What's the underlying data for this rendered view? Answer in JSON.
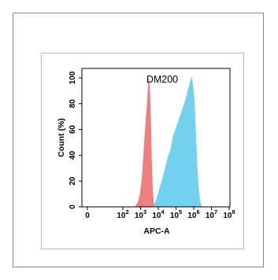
{
  "chart_data": {
    "type": "area",
    "title": "DM200",
    "xlabel": "APC-A",
    "ylabel": "Count (%)",
    "x_scale": "log",
    "ylim": [
      0,
      100
    ],
    "x_ticks": [
      {
        "value": 1,
        "base": "0",
        "exp": ""
      },
      {
        "value": 100,
        "base": "10",
        "exp": "2"
      },
      {
        "value": 1000,
        "base": "10",
        "exp": "3"
      },
      {
        "value": 10000,
        "base": "10",
        "exp": "4"
      },
      {
        "value": 100000,
        "base": "10",
        "exp": "5"
      },
      {
        "value": 1000000,
        "base": "10",
        "exp": "6"
      },
      {
        "value": 10000000,
        "base": "10",
        "exp": "7"
      },
      {
        "value": 100000000,
        "base": "10",
        "exp": "8"
      }
    ],
    "y_ticks": [
      "0",
      "20",
      "40",
      "60",
      "80",
      "100"
    ],
    "series": [
      {
        "color": "#f08080",
        "points": [
          [
            500,
            0
          ],
          [
            700,
            3
          ],
          [
            900,
            8
          ],
          [
            1100,
            16
          ],
          [
            1300,
            28
          ],
          [
            1500,
            40
          ],
          [
            1700,
            52
          ],
          [
            1900,
            62
          ],
          [
            2100,
            70
          ],
          [
            2300,
            76
          ],
          [
            2450,
            82
          ],
          [
            2600,
            88
          ],
          [
            2700,
            92
          ],
          [
            2800,
            96
          ],
          [
            2900,
            100
          ],
          [
            3000,
            98
          ],
          [
            3150,
            94
          ],
          [
            3300,
            88
          ],
          [
            3500,
            78
          ],
          [
            3700,
            66
          ],
          [
            3900,
            52
          ],
          [
            4100,
            38
          ],
          [
            4400,
            25
          ],
          [
            4700,
            14
          ],
          [
            5100,
            6
          ],
          [
            5600,
            2
          ],
          [
            6200,
            0
          ]
        ]
      },
      {
        "color": "#73d0ee",
        "points": [
          [
            5500,
            0
          ],
          [
            8000,
            6
          ],
          [
            12000,
            14
          ],
          [
            18000,
            22
          ],
          [
            25000,
            30
          ],
          [
            35000,
            38
          ],
          [
            50000,
            44
          ],
          [
            60000,
            50
          ],
          [
            75000,
            56
          ],
          [
            95000,
            60
          ],
          [
            120000,
            64
          ],
          [
            150000,
            68
          ],
          [
            190000,
            72
          ],
          [
            240000,
            76
          ],
          [
            300000,
            80
          ],
          [
            370000,
            84
          ],
          [
            440000,
            88
          ],
          [
            520000,
            92
          ],
          [
            600000,
            95
          ],
          [
            680000,
            98
          ],
          [
            760000,
            100
          ],
          [
            850000,
            96
          ],
          [
            950000,
            90
          ],
          [
            1080000,
            80
          ],
          [
            1200000,
            66
          ],
          [
            1350000,
            50
          ],
          [
            1550000,
            32
          ],
          [
            1800000,
            16
          ],
          [
            2200000,
            5
          ],
          [
            2700000,
            0
          ]
        ]
      }
    ]
  }
}
